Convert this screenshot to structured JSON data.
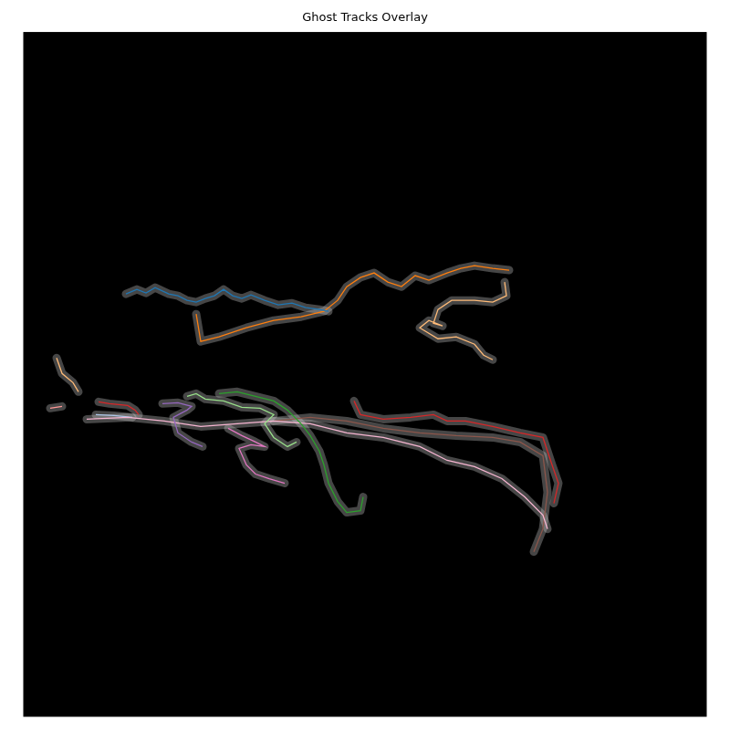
{
  "chart_data": {
    "type": "line",
    "title": "Ghost Tracks Overlay",
    "xlim": [
      0,
      748
    ],
    "ylim": [
      748,
      0
    ],
    "tick_labels": false,
    "grid": false,
    "series": [
      {
        "color": "#1f77b4",
        "x": [
          112,
          124,
          134,
          144,
          159,
          169,
          179,
          189,
          199,
          209,
          219,
          229,
          239,
          249,
          264,
          279,
          294,
          309,
          324,
          334
        ],
        "values": [
          286,
          281,
          285,
          279,
          286,
          288,
          293,
          295,
          291,
          288,
          281,
          288,
          291,
          287,
          293,
          298,
          296,
          301,
          303,
          305
        ]
      },
      {
        "color": "#ff7f0e",
        "x": [
          189,
          194,
          214,
          244,
          274,
          304,
          329,
          344,
          354,
          369,
          384,
          399,
          414,
          429,
          444,
          464,
          479,
          494,
          514,
          532
        ],
        "values": [
          308,
          338,
          333,
          323,
          315,
          311,
          305,
          293,
          278,
          268,
          263,
          273,
          278,
          266,
          271,
          263,
          258,
          255,
          258,
          260
        ]
      },
      {
        "color": "#ffbb78",
        "x": [
          527,
          529,
          514,
          494,
          469,
          454,
          449,
          459,
          444,
          434,
          454,
          474,
          494,
          504,
          514
        ],
        "values": [
          273,
          288,
          295,
          293,
          293,
          303,
          318,
          321,
          315,
          323,
          335,
          333,
          341,
          353,
          358
        ]
      },
      {
        "color": "#ffbb78",
        "x": [
          36,
          42,
          54,
          60
        ],
        "values": [
          356,
          373,
          383,
          393
        ]
      },
      {
        "color": "#d62728",
        "x": [
          362,
          369,
          394,
          424,
          449,
          464,
          484,
          514,
          544,
          569,
          574,
          579,
          586,
          581
        ],
        "values": [
          403,
          418,
          423,
          421,
          418,
          425,
          425,
          431,
          438,
          443,
          458,
          473,
          493,
          515
        ]
      },
      {
        "color": "#d62728",
        "x": [
          82,
          94,
          114,
          122,
          126
        ],
        "values": [
          404,
          406,
          408,
          413,
          418
        ]
      },
      {
        "color": "#ff9896",
        "x": [
          29,
          42
        ],
        "values": [
          411,
          409
        ]
      },
      {
        "color": "#9467bd",
        "x": [
          152,
          169,
          184,
          179,
          164,
          169,
          184,
          196
        ],
        "values": [
          406,
          405,
          409,
          413,
          421,
          438,
          448,
          453
        ]
      },
      {
        "color": "#98df8a",
        "x": [
          179,
          189,
          199,
          219,
          239,
          259,
          274,
          264,
          274,
          289,
          299
        ],
        "values": [
          398,
          395,
          401,
          403,
          410,
          411,
          418,
          428,
          443,
          453,
          448
        ]
      },
      {
        "color": "#2ca02c",
        "x": [
          214,
          234,
          254,
          274,
          289,
          304,
          314,
          324,
          329,
          334,
          344,
          354,
          369,
          372
        ],
        "values": [
          395,
          393,
          398,
          403,
          413,
          428,
          441,
          458,
          473,
          493,
          513,
          525,
          523,
          508
        ]
      },
      {
        "color": "#e377c2",
        "x": [
          224,
          239,
          254,
          264,
          249,
          236,
          244,
          254,
          269,
          286
        ],
        "values": [
          433,
          441,
          448,
          453,
          451,
          455,
          473,
          483,
          488,
          493
        ]
      },
      {
        "color": "#f7b6d2",
        "x": [
          69,
          114,
          154,
          194,
          234,
          274,
          314,
          354,
          394,
          434,
          464,
          494,
          524,
          549,
          569,
          574
        ],
        "values": [
          423,
          421,
          425,
          431,
          428,
          425,
          428,
          438,
          443,
          453,
          468,
          475,
          488,
          508,
          528,
          543
        ]
      },
      {
        "color": "#8c564b",
        "x": [
          274,
          314,
          354,
          394,
          434,
          474,
          514,
          544,
          569,
          574,
          569,
          559
        ],
        "values": [
          425,
          421,
          425,
          433,
          438,
          441,
          443,
          448,
          463,
          503,
          543,
          568
        ]
      },
      {
        "color": "#aec7e8",
        "x": [
          79,
          99,
          119
        ],
        "values": [
          418,
          419,
          421
        ]
      }
    ]
  }
}
